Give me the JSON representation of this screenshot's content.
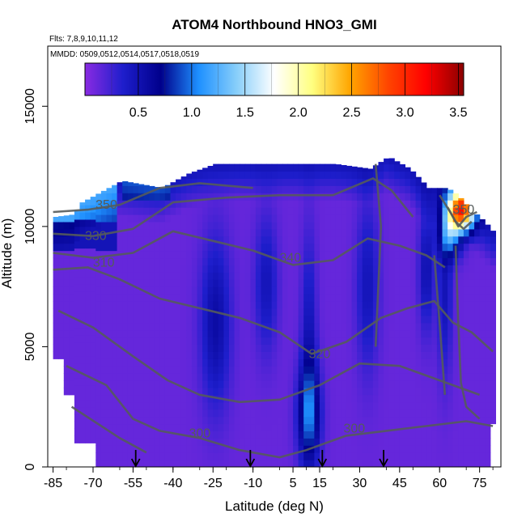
{
  "chart_data": {
    "type": "heatmap",
    "title": "ATOM4 Northbound HNO3_GMI",
    "subtitle_flights": "Flts: 7,8,9,10,11,12",
    "subtitle_dates": "MMDD: 0509,0512,0514,0517,0518,0519",
    "xlabel": "Latitude (deg N)",
    "ylabel": "Altitude (m)",
    "xlim": [
      -87,
      83
    ],
    "ylim": [
      0,
      17500
    ],
    "x_ticks": [
      -85,
      -70,
      -55,
      -40,
      -25,
      -10,
      5,
      15,
      30,
      45,
      60,
      75
    ],
    "x_tick_labels": [
      "-85",
      "-70",
      "-55",
      "-40",
      "-25",
      "-10",
      "5",
      "15",
      "30",
      "45",
      "60",
      "75"
    ],
    "y_ticks": [
      0,
      5000,
      10000,
      15000
    ],
    "y_tick_labels": [
      "0",
      "5000",
      "10000",
      "15000"
    ],
    "colorbar": {
      "range": [
        0,
        3.55
      ],
      "ticks": [
        0.5,
        1.0,
        1.5,
        2.0,
        2.5,
        3.0,
        3.5
      ],
      "tick_labels": [
        "0.5",
        "1.0",
        "1.5",
        "2.0",
        "2.5",
        "3.0",
        "3.5"
      ],
      "colors": [
        "#8a2be2",
        "#1e1ecc",
        "#00008b",
        "#1e90ff",
        "#87cefa",
        "#ffffff",
        "#ffff80",
        "#ffa500",
        "#ff4500",
        "#ff0000",
        "#8b0000"
      ]
    },
    "contour_labels": [
      {
        "text": "350",
        "x": -65,
        "y": 10900
      },
      {
        "text": "330",
        "x": -69,
        "y": 9600
      },
      {
        "text": "310",
        "x": -66,
        "y": 8500
      },
      {
        "text": "340",
        "x": 4,
        "y": 8700
      },
      {
        "text": "320",
        "x": 15,
        "y": 4700
      },
      {
        "text": "300",
        "x": -30,
        "y": 1400
      },
      {
        "text": "300",
        "x": 28,
        "y": 1600
      },
      {
        "text": "350",
        "x": 69,
        "y": 10700
      }
    ],
    "arrows_latitude": [
      -54,
      -11,
      16,
      39
    ],
    "notes": "Curtain of HNO3_GMI by latitude and altitude; mostly below 0.5, with values up to about 3 near 65–72N at 10–11 km."
  }
}
